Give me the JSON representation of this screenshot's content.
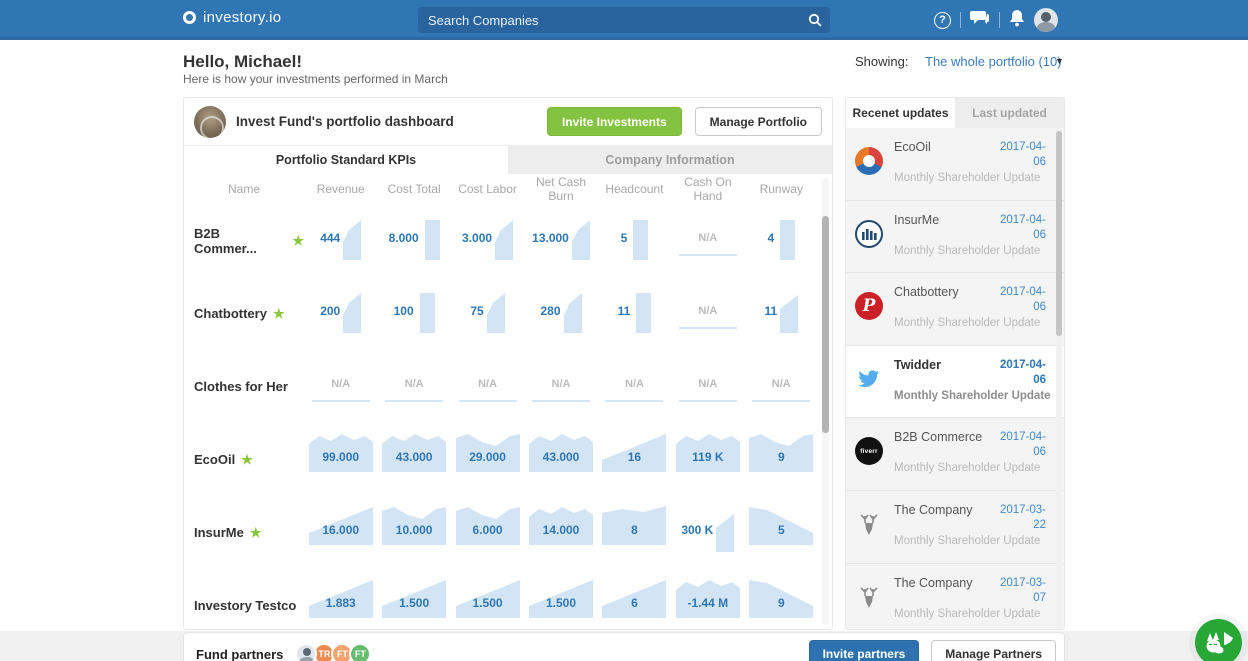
{
  "navbar": {
    "logo": "investory.io",
    "search_placeholder": "Search Companies",
    "icons": [
      "search-icon",
      "help-icon",
      "messages-icon",
      "notifications-icon",
      "user-avatar"
    ]
  },
  "header": {
    "greeting": "Hello, Michael!",
    "subtitle": "Here is how your investments performed in March",
    "showing_label": "Showing:",
    "showing_value": "The whole portfolio (10)"
  },
  "dashboard": {
    "title": "Invest Fund's portfolio dashboard",
    "invite_button": "Invite Investments",
    "manage_button": "Manage Portfolio",
    "tabs": [
      {
        "label": "Portfolio Standard KPIs",
        "active": true
      },
      {
        "label": "Company Information",
        "active": false
      }
    ],
    "columns": [
      "Name",
      "Revenue",
      "Cost Total",
      "Cost Labor",
      "Net Cash Burn",
      "Headcount",
      "Cash On Hand",
      "Runway"
    ],
    "rows": [
      {
        "name": "B2B Commer...",
        "starred": true,
        "cells": [
          {
            "v": "444",
            "spark": "nr4"
          },
          {
            "v": "8.000",
            "spark": "nr2"
          },
          {
            "v": "3.000",
            "spark": "nr4"
          },
          {
            "v": "13.000",
            "spark": "nr4"
          },
          {
            "v": "5",
            "spark": "nr2"
          },
          {
            "v": "N/A",
            "spark": "line"
          },
          {
            "v": "4",
            "spark": "nr2"
          }
        ]
      },
      {
        "name": "Chatbottery",
        "starred": true,
        "cells": [
          {
            "v": "200",
            "spark": "nr4"
          },
          {
            "v": "100",
            "spark": "nr2"
          },
          {
            "v": "75",
            "spark": "nr4"
          },
          {
            "v": "280",
            "spark": "nr4"
          },
          {
            "v": "11",
            "spark": "nr2"
          },
          {
            "v": "N/A",
            "spark": "line"
          },
          {
            "v": "11",
            "spark": "nr1"
          }
        ]
      },
      {
        "name": "Clothes for Her",
        "starred": false,
        "cells": [
          {
            "v": "N/A",
            "spark": "line"
          },
          {
            "v": "N/A",
            "spark": "line"
          },
          {
            "v": "N/A",
            "spark": "line"
          },
          {
            "v": "N/A",
            "spark": "line"
          },
          {
            "v": "N/A",
            "spark": "line"
          },
          {
            "v": "N/A",
            "spark": "line"
          },
          {
            "v": "N/A",
            "spark": "line"
          }
        ]
      },
      {
        "name": "EcoOil",
        "starred": true,
        "cells": [
          {
            "v": "99.000",
            "spark": "w1"
          },
          {
            "v": "43.000",
            "spark": "w1"
          },
          {
            "v": "29.000",
            "spark": "w2"
          },
          {
            "v": "43.000",
            "spark": "w1"
          },
          {
            "v": "16",
            "spark": "w3"
          },
          {
            "v": "119 K",
            "spark": "w1"
          },
          {
            "v": "9",
            "spark": "w2"
          }
        ]
      },
      {
        "name": "InsurMe",
        "starred": true,
        "cells": [
          {
            "v": "16.000",
            "spark": "w3"
          },
          {
            "v": "10.000",
            "spark": "w2"
          },
          {
            "v": "6.000",
            "spark": "w2"
          },
          {
            "v": "14.000",
            "spark": "w1"
          },
          {
            "v": "8",
            "spark": "w4"
          },
          {
            "v": "300 K",
            "spark": "nr1"
          },
          {
            "v": "5",
            "spark": "w5"
          }
        ]
      },
      {
        "name": "Investory Testco",
        "starred": false,
        "cells": [
          {
            "v": "1.883",
            "spark": "w3"
          },
          {
            "v": "1.500",
            "spark": "w3"
          },
          {
            "v": "1.500",
            "spark": "w3"
          },
          {
            "v": "1.500",
            "spark": "w3"
          },
          {
            "v": "6",
            "spark": "w3"
          },
          {
            "v": "-1.44 M",
            "spark": "w1"
          },
          {
            "v": "9",
            "spark": "w5"
          }
        ]
      }
    ]
  },
  "updates": {
    "tabs": [
      {
        "label": "Recenet updates",
        "active": true
      },
      {
        "label": "Last updated",
        "active": false
      }
    ],
    "items": [
      {
        "company": "EcoOil",
        "date": "2017-04-06",
        "note": "Monthly Shareholder Update",
        "logo": "ecooil-logo",
        "highlight": false
      },
      {
        "company": "InsurMe",
        "date": "2017-04-06",
        "note": "Monthly Shareholder Update",
        "logo": "insurme-logo",
        "highlight": false
      },
      {
        "company": "Chatbottery",
        "date": "2017-04-06",
        "note": "Monthly Shareholder Update",
        "logo": "chatbottery-logo",
        "highlight": false
      },
      {
        "company": "Twidder",
        "date": "2017-04-06",
        "note": "Monthly Shareholder Update",
        "logo": "twidder-logo",
        "highlight": true
      },
      {
        "company": "B2B Commerce",
        "date": "2017-04-06",
        "note": "Monthly Shareholder Update",
        "logo": "b2b-commerce-logo",
        "highlight": false
      },
      {
        "company": "The Company",
        "date": "2017-03-22",
        "note": "Monthly Shareholder Update",
        "logo": "the-company-logo",
        "highlight": false
      },
      {
        "company": "The Company",
        "date": "2017-03-07",
        "note": "Monthly Shareholder Update",
        "logo": "the-company-logo",
        "highlight": false
      }
    ]
  },
  "footer": {
    "label": "Fund partners",
    "partners": [
      {
        "type": "photo",
        "initials": ""
      },
      {
        "type": "initials",
        "initials": "TR",
        "color": "#ec8b50"
      },
      {
        "type": "initials",
        "initials": "FT",
        "color": "#f3a36c"
      },
      {
        "type": "initials",
        "initials": "FT",
        "color": "#67bd70"
      }
    ],
    "invite_button": "Invite partners",
    "manage_button": "Manage Partners"
  },
  "colors": {
    "navbar": "#3176b4",
    "accent_green": "#84c341",
    "value_blue": "#2e77b5",
    "star_green": "#8bc53f",
    "spark_fill": "#d3e5f4",
    "date_blue": "#4089cc",
    "invite_blue": "#2d72ae",
    "chat_widget_green": "#28a737"
  }
}
